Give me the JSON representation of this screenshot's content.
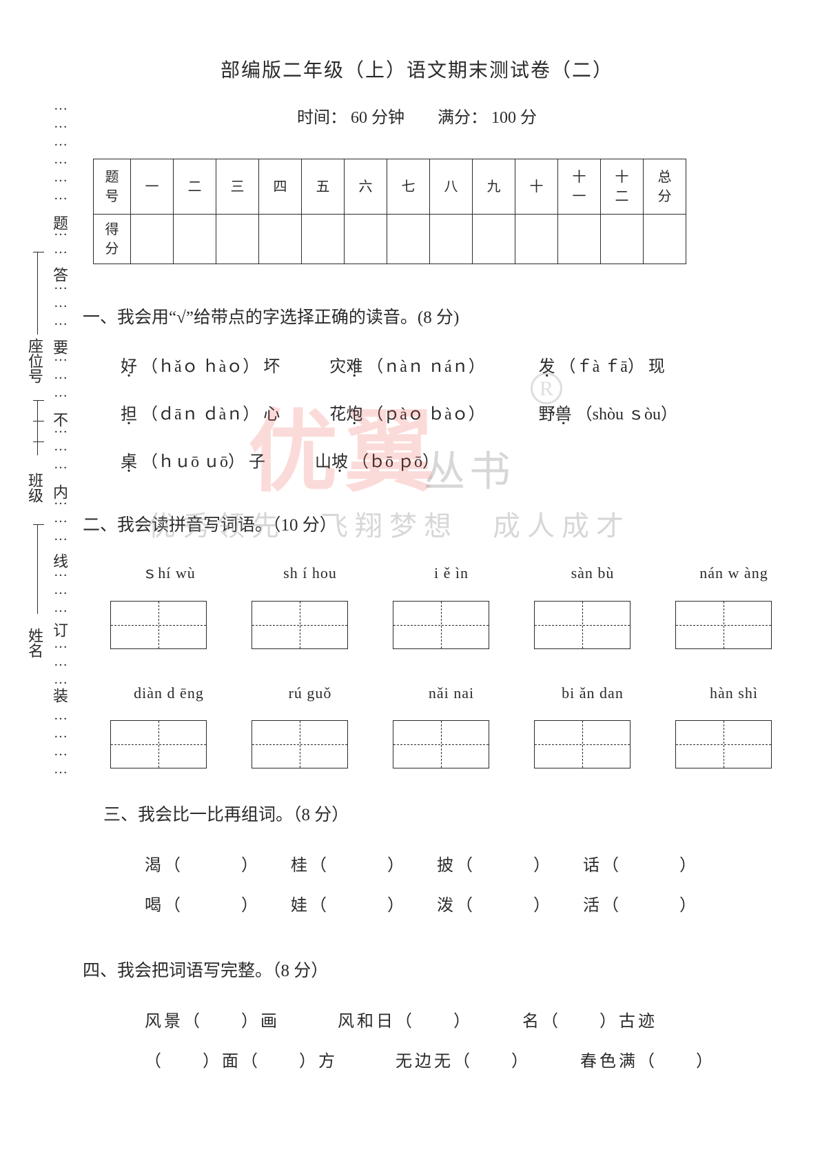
{
  "title": "部编版二年级（上）语文期末测试卷（二）",
  "subtitle": "时间： 60 分钟　　满分： 100 分",
  "score_table": {
    "row1_label": "题号",
    "row2_label": "得分",
    "cols": [
      "一",
      "二",
      "三",
      "四",
      "五",
      "六",
      "七",
      "八",
      "九",
      "十",
      "十一",
      "十二",
      "总分"
    ]
  },
  "q1": {
    "title": "一、我会用“√”给带点的字选择正确的读音。(8 分)",
    "lines": [
      [
        {
          "char": "好",
          "py": "（ｈǎｏ ｈàｏ）",
          "tail": "坏"
        },
        {
          "char": "灾难",
          "py": "（ｎàｎ ｎáｎ）",
          "tail": "",
          "dotIndex": 1
        },
        {
          "char": "发",
          "py": "（ｆà ｆā）",
          "tail": "现"
        }
      ],
      [
        {
          "char": "担",
          "py": "（ｄāｎ ｄàｎ）",
          "tail": "心"
        },
        {
          "char": "花炮",
          "py": "（ｐàｏ ｂàｏ）",
          "tail": "",
          "dotIndex": 1
        },
        {
          "char": "野兽",
          "py": "（shòu ｓòu）",
          "tail": "",
          "dotIndex": 1
        }
      ],
      [
        {
          "char": "桌",
          "py": "（ｈｕō ｕō）",
          "tail": "子"
        },
        {
          "char": "山坡",
          "py": "（ｂō ｐō）",
          "tail": "",
          "dotIndex": 1
        }
      ]
    ]
  },
  "q2": {
    "title": "二、我会读拼音写词语。（10 分）",
    "row1": [
      "ｓhí wù",
      "sh í hou",
      "i ě ìn",
      "sàn bù",
      "nán w àng"
    ],
    "row2": [
      "diàn d ēng",
      "rú guǒ",
      "nǎi nai",
      "bi ǎn dan",
      "hàn shì"
    ]
  },
  "q3": {
    "title": "三、我会比一比再组词。（8 分）",
    "rows": [
      [
        "渴（　　　）",
        "桂（　　　）",
        "披（　　　）",
        "话（　　　）"
      ],
      [
        "喝（　　　）",
        "娃（　　　）",
        "泼（　　　）",
        "活（　　　）"
      ]
    ]
  },
  "q4": {
    "title": "四、我会把词语写完整。（8 分）",
    "rows": [
      [
        "风景（　　）画",
        "风和日（　　）",
        "名（　　）古迹"
      ],
      [
        "（　　）面（　　）方",
        "无边无（　　）",
        "春色满（　　）"
      ]
    ]
  },
  "margin": {
    "labels_inner": [
      "题",
      "答",
      "要",
      "不",
      "内",
      "线",
      "订",
      "装"
    ],
    "labels_outer": {
      "seat": "座位号",
      "class": "班级",
      "name": "姓名"
    }
  },
  "watermark": {
    "big": "优翼",
    "series": "丛书",
    "tag": "优秀领先　飞翔梦想　成人成才",
    "r": "R"
  },
  "colors": {
    "text": "#2a2a2a",
    "wm_red": "rgba(231,57,46,0.18)",
    "wm_gray": "rgba(150,150,150,0.38)",
    "bg": "#ffffff"
  }
}
